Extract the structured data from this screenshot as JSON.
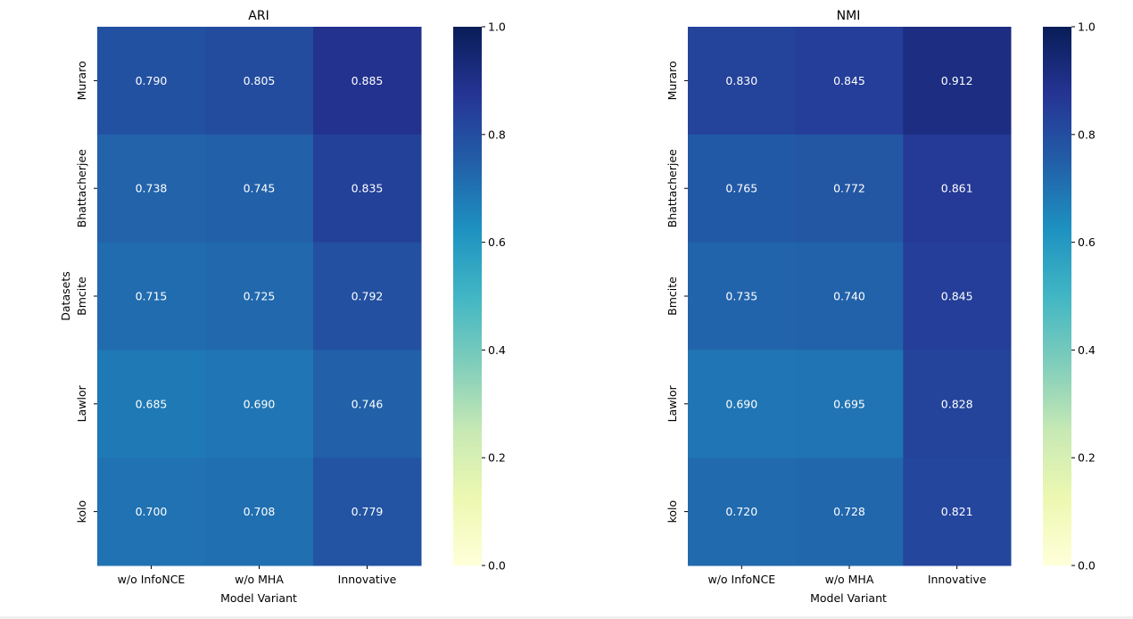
{
  "chart_data": [
    {
      "type": "heatmap",
      "title": "ARI",
      "xlabel": "Model Variant",
      "ylabel": "Datasets",
      "x_categories": [
        "w/o InfoNCE",
        "w/o MHA",
        "Innovative"
      ],
      "y_categories": [
        "Muraro",
        "Bhattacherjee",
        "Bmcite",
        "Lawlor",
        "kolo"
      ],
      "values": [
        [
          0.79,
          0.805,
          0.885
        ],
        [
          0.738,
          0.745,
          0.835
        ],
        [
          0.715,
          0.725,
          0.792
        ],
        [
          0.685,
          0.69,
          0.746
        ],
        [
          0.7,
          0.708,
          0.779
        ]
      ],
      "value_format": "0.000",
      "colormap": "YlGnBu",
      "colorbar": {
        "vmin": 0.0,
        "vmax": 1.0,
        "ticks": [
          "0.0",
          "0.2",
          "0.4",
          "0.6",
          "0.8",
          "1.0"
        ]
      }
    },
    {
      "type": "heatmap",
      "title": "NMI",
      "xlabel": "Model Variant",
      "ylabel": "",
      "x_categories": [
        "w/o InfoNCE",
        "w/o MHA",
        "Innovative"
      ],
      "y_categories": [
        "Muraro",
        "Bhattacherjee",
        "Bmcite",
        "Lawlor",
        "kolo"
      ],
      "values": [
        [
          0.83,
          0.845,
          0.912
        ],
        [
          0.765,
          0.772,
          0.861
        ],
        [
          0.735,
          0.74,
          0.845
        ],
        [
          0.69,
          0.695,
          0.828
        ],
        [
          0.72,
          0.728,
          0.821
        ]
      ],
      "value_format": "0.000",
      "colormap": "YlGnBu",
      "colorbar": {
        "vmin": 0.0,
        "vmax": 1.0,
        "ticks": [
          "0.0",
          "0.2",
          "0.4",
          "0.6",
          "0.8",
          "1.0"
        ]
      }
    }
  ],
  "colormap_stops": [
    "#ffffd9",
    "#edf8b1",
    "#c7e9b4",
    "#7fcdbb",
    "#41b6c4",
    "#1d91c0",
    "#225ea8",
    "#253494",
    "#081d58"
  ]
}
